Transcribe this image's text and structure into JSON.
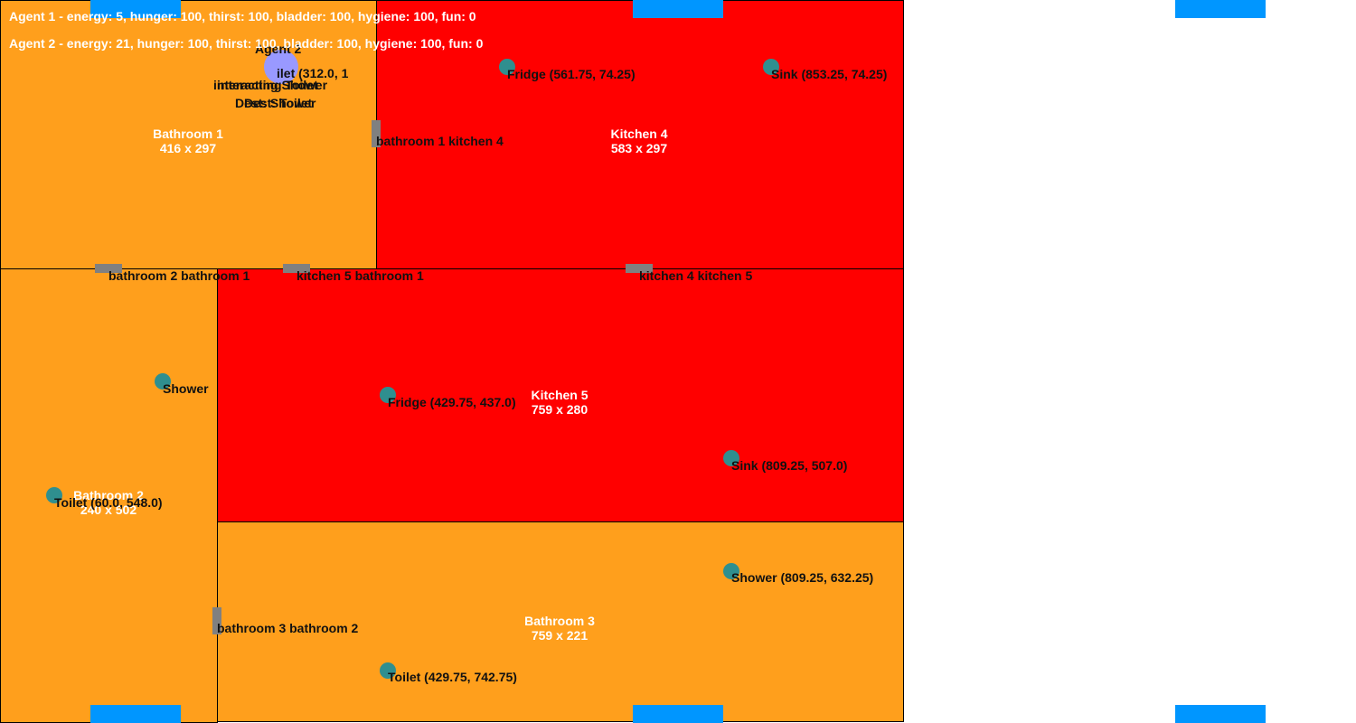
{
  "colors": {
    "bathroom": "#ff9f1c",
    "kitchen": "#ff0000",
    "door": "#808080",
    "object": "#2f8f8f",
    "spawn": "#0096ff",
    "agent": "#9999ff"
  },
  "status": {
    "agent1": "Agent 1 - energy: 5, hunger: 100, thirst: 100, bladder: 100, hygiene: 100, fun: 0",
    "agent2": "Agent 2 - energy: 21, hunger: 100, thirst: 100, bladder: 100, hygiene: 100, fun: 0"
  },
  "rooms": {
    "bathroom1": {
      "name": "Bathroom 1",
      "size": "416 x 297"
    },
    "kitchen4": {
      "name": "Kitchen 4",
      "size": "583 x 297"
    },
    "bathroom2": {
      "name": "Bathroom 2",
      "size": "240 x 502"
    },
    "kitchen5": {
      "name": "Kitchen 5",
      "size": "759 x 280"
    },
    "bathroom3": {
      "name": "Bathroom 3",
      "size": "759 x 221"
    }
  },
  "doors": {
    "bathroom1_kitchen4": "bathroom 1 kitchen 4",
    "bathroom2_bathroom1": "bathroom 2 bathroom 1",
    "kitchen5_bathroom1": "kitchen 5 bathroom 1",
    "kitchen4_kitchen5": "kitchen 4 kitchen 5",
    "bathroom3_bathroom2": "bathroom 3 bathroom 2"
  },
  "objects": {
    "fridge_k4": "Fridge (561.75, 74.25)",
    "sink_k4": "Sink (853.25, 74.25)",
    "shower_b2": "Shower",
    "fridge_k5": "Fridge (429.75, 437.0)",
    "sink_k5": "Sink (809.25, 507.0)",
    "toilet_b2": "Toilet (60.0, 548.0)",
    "shower_b3": "Shower (809.25, 632.25)",
    "toilet_b3": "Toilet (429.75, 742.75)"
  },
  "agent2": {
    "name": "Agent 2",
    "overlap_text_1": "ilet (312.0, 1",
    "overlap_text_2": "interacting Shower",
    "overlap_text_3": "interacting Toilet",
    "overlap_text_4": "Dest: Shower",
    "overlap_text_5": "Dest: Toilet"
  }
}
